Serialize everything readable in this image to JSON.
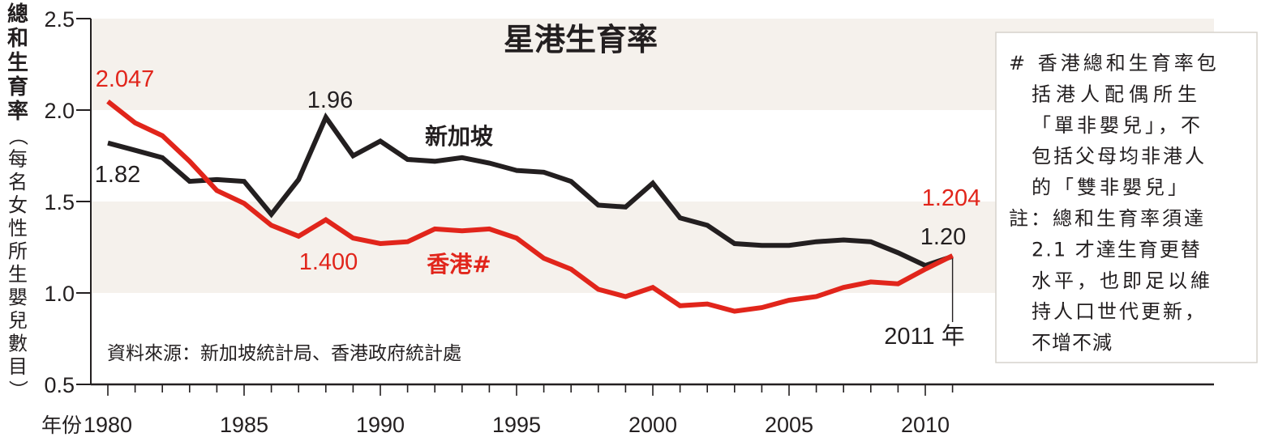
{
  "chart_data": {
    "type": "line",
    "title": "星港生育率",
    "ylabel": "總和生育率",
    "ylabel_sub": "（每名女性所生嬰兒數目）",
    "xlabel": "年份",
    "ylim": [
      0.5,
      2.5
    ],
    "yticks": [
      "0.5",
      "1.0",
      "1.5",
      "2.0",
      "2.5"
    ],
    "xlim": [
      1980,
      2011
    ],
    "xticks": [
      "1980",
      "1985",
      "1990",
      "1995",
      "2000",
      "2005",
      "2010"
    ],
    "x": [
      1980,
      1981,
      1982,
      1983,
      1984,
      1985,
      1986,
      1987,
      1988,
      1989,
      1990,
      1991,
      1992,
      1993,
      1994,
      1995,
      1996,
      1997,
      1998,
      1999,
      2000,
      2001,
      2002,
      2003,
      2004,
      2005,
      2006,
      2007,
      2008,
      2009,
      2010,
      2011
    ],
    "series": [
      {
        "name": "新加坡",
        "color": "#231f20",
        "values": [
          1.82,
          1.78,
          1.74,
          1.61,
          1.62,
          1.61,
          1.43,
          1.62,
          1.96,
          1.75,
          1.83,
          1.73,
          1.72,
          1.74,
          1.71,
          1.67,
          1.66,
          1.61,
          1.48,
          1.47,
          1.6,
          1.41,
          1.37,
          1.27,
          1.26,
          1.26,
          1.28,
          1.29,
          1.28,
          1.22,
          1.15,
          1.2
        ]
      },
      {
        "name": "香港#",
        "color": "#e1251b",
        "values": [
          2.047,
          1.93,
          1.86,
          1.72,
          1.56,
          1.49,
          1.37,
          1.31,
          1.4,
          1.3,
          1.27,
          1.28,
          1.35,
          1.34,
          1.35,
          1.3,
          1.19,
          1.13,
          1.02,
          0.98,
          1.03,
          0.93,
          0.94,
          0.9,
          0.92,
          0.96,
          0.98,
          1.03,
          1.06,
          1.05,
          1.13,
          1.204
        ]
      }
    ],
    "annotations": [
      {
        "text": "2.047",
        "color": "#e1251b"
      },
      {
        "text": "1.82",
        "color": "#231f20"
      },
      {
        "text": "1.96",
        "color": "#231f20"
      },
      {
        "text": "1.400",
        "color": "#e1251b"
      },
      {
        "text": "1.204",
        "color": "#e1251b"
      },
      {
        "text": "1.20",
        "color": "#231f20"
      },
      {
        "text": "2011 年",
        "color": "#231f20"
      }
    ],
    "source": "資料來源：新加坡統計局、香港政府統計處",
    "note_lines": [
      "# 香港總和生育率包",
      "括港人配偶所生",
      "「單非嬰兒」，不",
      "包括父母均非港人",
      "的「雙非嬰兒」",
      "註：總和生育率須達",
      "2.1 才達生育更替",
      "水平，也即足以維",
      "持人口世代更新，",
      "不增不減"
    ],
    "band_color": "#f5f1ec",
    "grid": false
  }
}
